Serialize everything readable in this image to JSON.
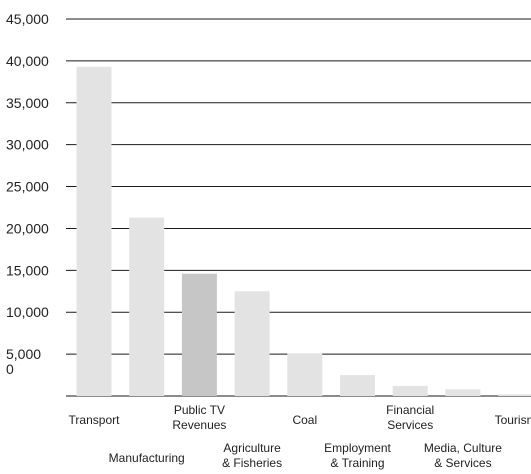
{
  "chart_data": {
    "type": "bar",
    "title": "",
    "xlabel": "",
    "ylabel": "",
    "ylim": [
      0,
      45000
    ],
    "yticks": [
      "0",
      "5,000",
      "10,000",
      "15,000",
      "20,000",
      "25,000",
      "30,000",
      "35,000",
      "40,000",
      "45,000"
    ],
    "grid": true,
    "categories": [
      "Transport",
      "Manufacturing",
      "Public TV Revenues",
      "Agriculture & Fisheries",
      "Coal",
      "Employment & Training",
      "Financial Services",
      "Media, Culture & Services",
      "Tourism"
    ],
    "category_label_lines": [
      [
        "Transport"
      ],
      [
        "Manufacturing"
      ],
      [
        "Public TV",
        "Revenues"
      ],
      [
        "Agriculture",
        "& Fisheries"
      ],
      [
        "Coal"
      ],
      [
        "Employment",
        "& Training"
      ],
      [
        "Financial",
        "Services"
      ],
      [
        "Media, Culture",
        "& Services"
      ],
      [
        "Tourism"
      ]
    ],
    "values": [
      39300,
      21300,
      14600,
      12500,
      5100,
      2500,
      1200,
      800,
      200
    ],
    "highlighted": "Public TV Revenues",
    "colors": {
      "bar": "#e3e3e3",
      "highlight": "#c6c6c6",
      "grid": "#1a1a1a",
      "text": "#222222"
    }
  }
}
